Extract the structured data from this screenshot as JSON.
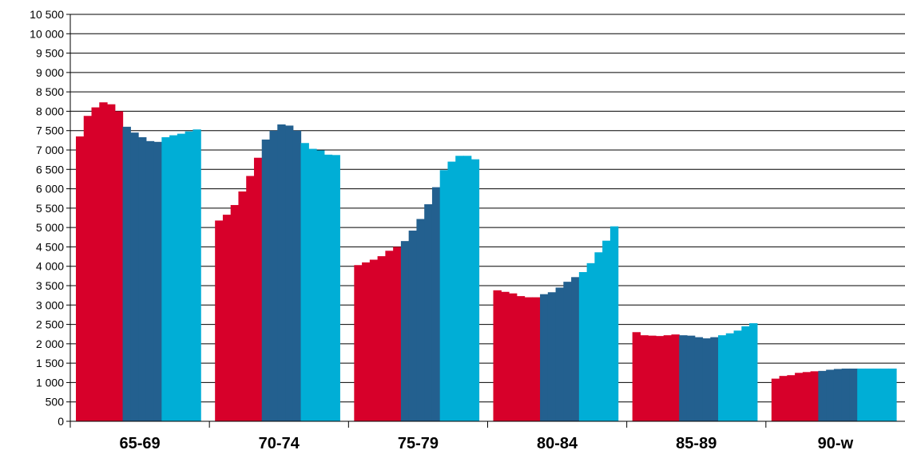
{
  "chart_data": {
    "type": "bar",
    "title": "",
    "xlabel": "",
    "ylabel": "",
    "ylim": [
      0,
      10500
    ],
    "ytick_step": 500,
    "ytick_labels": [
      "0",
      "500",
      "1 000",
      "1 500",
      "2 000",
      "2 500",
      "3 000",
      "3 500",
      "4 000",
      "4 500",
      "5 000",
      "5 500",
      "6 000",
      "6 500",
      "7 000",
      "7 500",
      "8 000",
      "8 500",
      "9 000",
      "9 500",
      "10 000",
      "10 500"
    ],
    "grid": true,
    "legend": "none",
    "categories": [
      "65-69",
      "70-74",
      "75-79",
      "80-84",
      "85-89",
      "90-w"
    ],
    "colors": [
      "#d7002a",
      "#23608f",
      "#00aed6"
    ],
    "groups": [
      {
        "category": "65-69",
        "values": [
          7350,
          7880,
          8100,
          8230,
          8180,
          8000,
          7600,
          7450,
          7330,
          7230,
          7210,
          7330,
          7380,
          7420,
          7480,
          7530
        ]
      },
      {
        "category": "70-74",
        "values": [
          5180,
          5330,
          5580,
          5930,
          6330,
          6800,
          7270,
          7500,
          7660,
          7630,
          7500,
          7180,
          7030,
          6990,
          6880,
          6870
        ]
      },
      {
        "category": "75-79",
        "values": [
          4030,
          4100,
          4170,
          4260,
          4400,
          4500,
          4650,
          4920,
          5220,
          5600,
          6040,
          6480,
          6700,
          6850,
          6850,
          6760
        ]
      },
      {
        "category": "80-84",
        "values": [
          3380,
          3340,
          3300,
          3230,
          3200,
          3200,
          3280,
          3330,
          3450,
          3600,
          3720,
          3850,
          4080,
          4360,
          4660,
          5030
        ]
      },
      {
        "category": "85-89",
        "values": [
          2300,
          2220,
          2210,
          2200,
          2220,
          2240,
          2220,
          2210,
          2170,
          2140,
          2170,
          2220,
          2270,
          2340,
          2450,
          2530
        ]
      },
      {
        "category": "90-w",
        "values": [
          1100,
          1170,
          1190,
          1250,
          1270,
          1290,
          1300,
          1330,
          1350,
          1360,
          1360,
          1360,
          1360,
          1360,
          1360,
          1360
        ]
      }
    ],
    "series_split": [
      6,
      5,
      5
    ]
  }
}
